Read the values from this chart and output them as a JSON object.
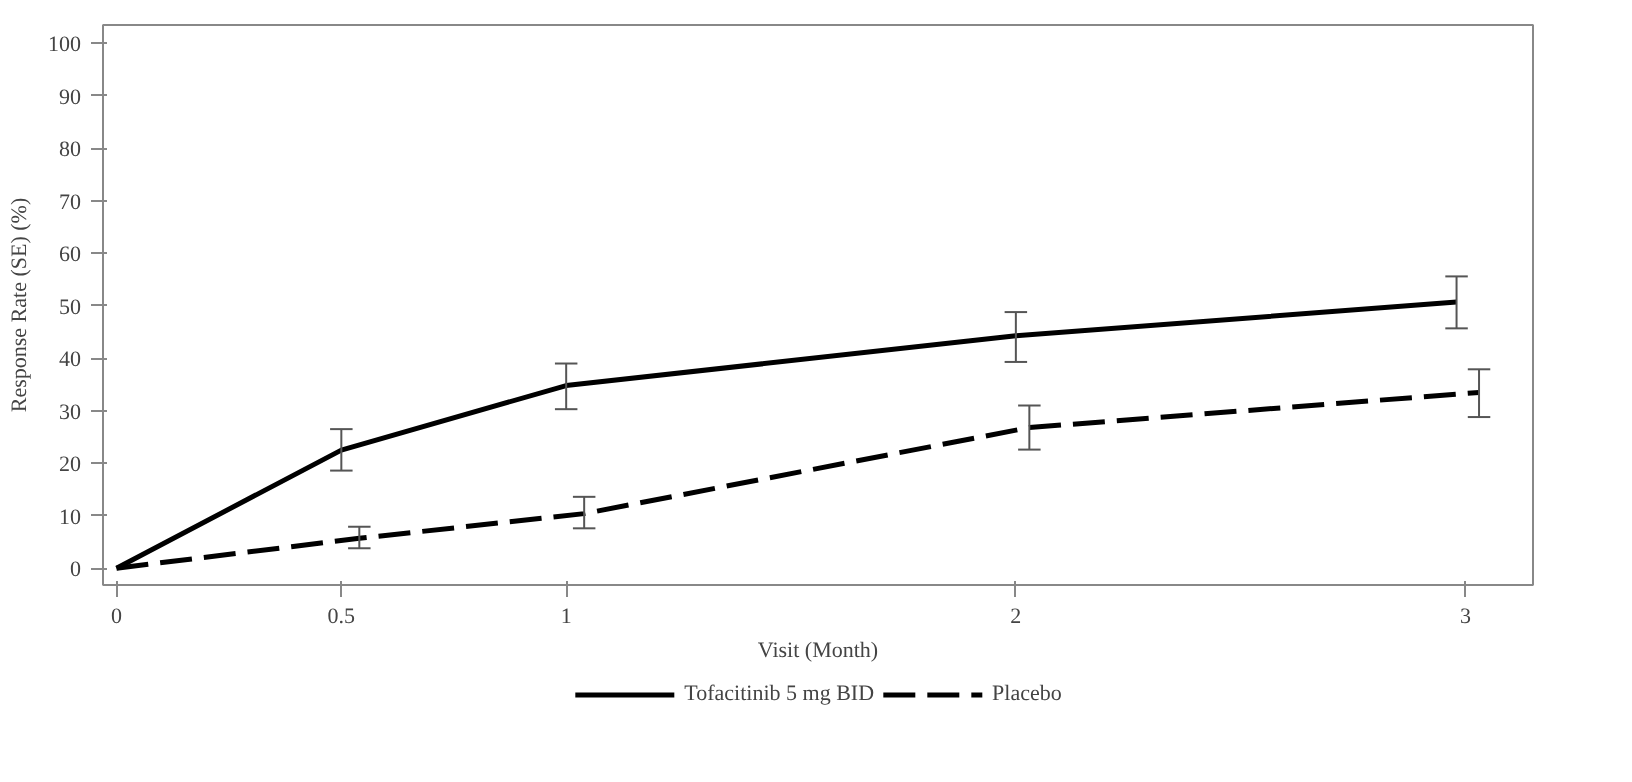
{
  "chart_data": {
    "type": "line",
    "xlabel": "Visit (Month)",
    "ylabel": "Response Rate (SE) (%)",
    "xlim": [
      -0.03,
      3.15
    ],
    "ylim": [
      -3.2,
      103.5
    ],
    "xticks": [
      0,
      0.5,
      1,
      2,
      3
    ],
    "yticks": [
      0,
      10,
      20,
      30,
      40,
      50,
      60,
      70,
      80,
      90,
      100
    ],
    "grid": false,
    "legend": "bottom",
    "marker": "none",
    "series": [
      {
        "name": "Tofacitinib 5 mg BID",
        "color": "#000000",
        "line_style": "solid",
        "x": [
          0,
          0.5,
          1,
          2,
          2.98
        ],
        "values": [
          0,
          22.5,
          34.8,
          44.3,
          50.7
        ],
        "errors": [
          null,
          [
            18.6,
            26.5
          ],
          [
            30.3,
            39.0
          ],
          [
            39.3,
            48.8
          ],
          [
            45.7,
            55.6
          ]
        ]
      },
      {
        "name": "Placebo",
        "color": "#000000",
        "line_style": "dashed",
        "x": [
          0,
          0.54,
          1.04,
          2.03,
          3.03
        ],
        "values": [
          0,
          5.7,
          10.4,
          26.8,
          33.5
        ],
        "errors": [
          null,
          [
            3.8,
            7.9
          ],
          [
            7.6,
            13.6
          ],
          [
            22.6,
            31.0
          ],
          [
            28.8,
            37.9
          ]
        ]
      }
    ]
  }
}
